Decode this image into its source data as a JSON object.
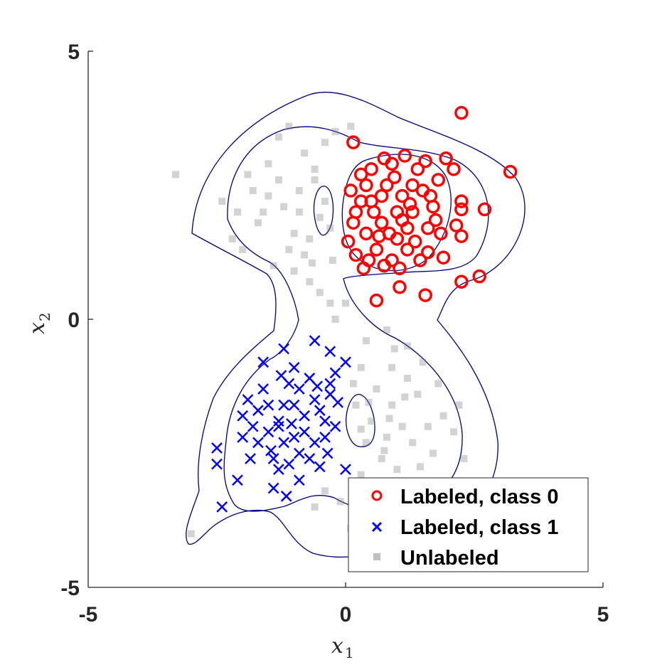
{
  "chart_data": {
    "type": "scatter",
    "title": "",
    "xlabel": "x",
    "xlabel_sub": "1",
    "ylabel": "x",
    "ylabel_sub": "2",
    "xlim": [
      -5,
      5
    ],
    "ylim": [
      -5,
      5
    ],
    "xticks": [
      "-5",
      "0",
      "5"
    ],
    "yticks": [
      "-5",
      "0",
      "5"
    ],
    "grid": false,
    "legend_position": "bottom-right",
    "colors": {
      "class0": "#ff0000",
      "class1": "#0000ff",
      "unlabeled": "#808080",
      "contour": "#00007f",
      "axis": "#262626"
    },
    "series": [
      {
        "name": "Labeled, class 0",
        "marker": "circle",
        "points": [
          [
            2.25,
            3.85
          ],
          [
            3.2,
            2.75
          ],
          [
            0.15,
            3.3
          ],
          [
            1.95,
            3.0
          ],
          [
            2.1,
            2.8
          ],
          [
            2.25,
            2.2
          ],
          [
            2.25,
            2.05
          ],
          [
            2.7,
            2.05
          ],
          [
            2.15,
            1.75
          ],
          [
            2.25,
            1.55
          ],
          [
            1.85,
            1.6
          ],
          [
            2.6,
            0.8
          ],
          [
            2.25,
            0.7
          ],
          [
            1.55,
            0.45
          ],
          [
            1.05,
            0.6
          ],
          [
            0.6,
            0.35
          ],
          [
            1.45,
            1.1
          ],
          [
            0.05,
            1.45
          ],
          [
            0.35,
            0.95
          ],
          [
            1.9,
            1.15
          ],
          [
            1.6,
            1.25
          ],
          [
            0.2,
            2.0
          ],
          [
            0.5,
            2.2
          ],
          [
            0.8,
            2.5
          ],
          [
            1.1,
            2.3
          ],
          [
            1.3,
            2.0
          ],
          [
            1.5,
            2.4
          ],
          [
            0.4,
            1.6
          ],
          [
            0.7,
            1.8
          ],
          [
            1.0,
            1.5
          ],
          [
            1.2,
            1.7
          ],
          [
            0.3,
            2.7
          ],
          [
            0.9,
            2.9
          ],
          [
            1.4,
            2.8
          ],
          [
            1.7,
            2.1
          ],
          [
            1.6,
            1.7
          ],
          [
            0.6,
            1.3
          ],
          [
            0.9,
            1.1
          ],
          [
            1.2,
            1.3
          ],
          [
            0.2,
            1.2
          ],
          [
            0.5,
            2.8
          ],
          [
            0.1,
            2.4
          ],
          [
            1.0,
            2.0
          ],
          [
            0.7,
            2.3
          ],
          [
            1.3,
            2.5
          ],
          [
            1.8,
            2.6
          ],
          [
            1.55,
            2.95
          ],
          [
            1.15,
            3.05
          ],
          [
            0.75,
            3.0
          ],
          [
            0.4,
            2.5
          ],
          [
            0.15,
            1.8
          ],
          [
            0.45,
            1.1
          ],
          [
            0.75,
            1.0
          ],
          [
            1.05,
            0.95
          ],
          [
            1.35,
            1.45
          ],
          [
            1.75,
            1.85
          ],
          [
            1.65,
            2.3
          ],
          [
            0.85,
            1.6
          ],
          [
            1.1,
            1.85
          ],
          [
            0.55,
            2.0
          ],
          [
            0.3,
            2.2
          ],
          [
            0.95,
            2.65
          ],
          [
            1.25,
            2.15
          ],
          [
            0.65,
            1.55
          ]
        ]
      },
      {
        "name": "Labeled, class 1",
        "marker": "x",
        "points": [
          [
            -2.4,
            -3.5
          ],
          [
            -2.5,
            -2.4
          ],
          [
            -2.5,
            -2.7
          ],
          [
            -2.1,
            -3.0
          ],
          [
            -1.4,
            -3.15
          ],
          [
            -1.15,
            -3.3
          ],
          [
            -0.9,
            -3.0
          ],
          [
            -0.5,
            -2.75
          ],
          [
            0.0,
            -2.8
          ],
          [
            -1.2,
            -0.55
          ],
          [
            -0.6,
            -0.4
          ],
          [
            -0.3,
            -0.6
          ],
          [
            -1.6,
            -0.8
          ],
          [
            -1.0,
            -0.9
          ],
          [
            -1.9,
            -1.5
          ],
          [
            -1.8,
            -2.0
          ],
          [
            -1.5,
            -1.6
          ],
          [
            -1.3,
            -1.9
          ],
          [
            -1.0,
            -1.6
          ],
          [
            -0.8,
            -2.1
          ],
          [
            -0.5,
            -1.7
          ],
          [
            -0.3,
            -1.4
          ],
          [
            -0.2,
            -2.0
          ],
          [
            -1.2,
            -2.3
          ],
          [
            -1.4,
            -2.6
          ],
          [
            -0.9,
            -2.5
          ],
          [
            -0.6,
            -2.3
          ],
          [
            -0.4,
            -2.2
          ],
          [
            -1.7,
            -2.3
          ],
          [
            -1.6,
            -1.3
          ],
          [
            -1.1,
            -1.2
          ],
          [
            -0.7,
            -1.1
          ],
          [
            -0.2,
            -1.0
          ],
          [
            0.0,
            -0.8
          ],
          [
            -1.3,
            -2.0
          ],
          [
            -1.0,
            -2.2
          ],
          [
            -0.8,
            -1.8
          ],
          [
            -0.6,
            -1.5
          ],
          [
            -1.5,
            -2.1
          ],
          [
            -2.0,
            -2.2
          ],
          [
            -1.2,
            -1.6
          ],
          [
            -0.9,
            -1.3
          ],
          [
            -0.4,
            -1.9
          ],
          [
            -0.3,
            -1.2
          ],
          [
            -1.1,
            -2.7
          ],
          [
            -1.3,
            -2.8
          ],
          [
            -1.7,
            -1.7
          ],
          [
            -2.0,
            -1.8
          ],
          [
            -0.7,
            -2.6
          ],
          [
            -1.45,
            -2.45
          ],
          [
            -0.35,
            -2.5
          ],
          [
            -1.85,
            -2.6
          ],
          [
            -1.05,
            -1.95
          ],
          [
            -0.55,
            -1.25
          ],
          [
            -0.15,
            -1.55
          ],
          [
            -1.25,
            -1.05
          ]
        ]
      },
      {
        "name": "Unlabeled",
        "marker": "square",
        "points": [
          [
            -3.3,
            2.7
          ],
          [
            -3.0,
            -4.0
          ],
          [
            -2.4,
            2.2
          ],
          [
            -2.2,
            1.5
          ],
          [
            -2.0,
            1.3
          ],
          [
            -1.8,
            2.4
          ],
          [
            -1.5,
            2.9
          ],
          [
            -1.3,
            3.4
          ],
          [
            -1.1,
            3.6
          ],
          [
            -0.8,
            3.1
          ],
          [
            -0.6,
            2.8
          ],
          [
            -0.4,
            3.3
          ],
          [
            -0.2,
            3.5
          ],
          [
            0.1,
            3.6
          ],
          [
            -1.4,
            1.0
          ],
          [
            -1.0,
            0.9
          ],
          [
            -0.7,
            0.7
          ],
          [
            -0.5,
            0.5
          ],
          [
            -0.3,
            0.3
          ],
          [
            -0.2,
            0.0
          ],
          [
            0.0,
            0.3
          ],
          [
            -1.7,
            1.8
          ],
          [
            -1.2,
            2.1
          ],
          [
            -0.9,
            2.4
          ],
          [
            -0.7,
            1.5
          ],
          [
            -0.5,
            1.9
          ],
          [
            -0.8,
            1.2
          ],
          [
            -1.0,
            1.6
          ],
          [
            -1.3,
            2.6
          ],
          [
            -1.6,
            2.0
          ],
          [
            -0.4,
            2.2
          ],
          [
            -0.6,
            2.6
          ],
          [
            -1.1,
            1.3
          ],
          [
            -0.9,
            2.0
          ],
          [
            -1.5,
            2.3
          ],
          [
            -1.9,
            2.7
          ],
          [
            -2.1,
            2.0
          ],
          [
            -0.3,
            1.7
          ],
          [
            -0.25,
            1.1
          ],
          [
            -0.65,
            1.05
          ],
          [
            0.8,
            -0.2
          ],
          [
            1.2,
            -0.5
          ],
          [
            1.5,
            -0.8
          ],
          [
            1.8,
            -1.2
          ],
          [
            2.2,
            -1.6
          ],
          [
            2.1,
            -2.1
          ],
          [
            2.3,
            -2.6
          ],
          [
            0.3,
            -0.9
          ],
          [
            0.6,
            -1.3
          ],
          [
            0.9,
            -1.6
          ],
          [
            1.1,
            -2.0
          ],
          [
            0.4,
            -2.3
          ],
          [
            0.7,
            -2.6
          ],
          [
            1.0,
            -2.8
          ],
          [
            1.3,
            -2.3
          ],
          [
            1.6,
            -2.0
          ],
          [
            1.7,
            -2.5
          ],
          [
            0.2,
            -1.6
          ],
          [
            0.5,
            -1.9
          ],
          [
            0.8,
            -2.2
          ],
          [
            0.3,
            -2.9
          ],
          [
            0.6,
            -3.1
          ],
          [
            -0.1,
            -3.4
          ],
          [
            -0.4,
            -3.2
          ],
          [
            -0.6,
            -3.5
          ],
          [
            0.1,
            -3.9
          ],
          [
            0.5,
            -3.6
          ],
          [
            1.4,
            -1.4
          ],
          [
            1.9,
            -1.8
          ],
          [
            1.2,
            -1.1
          ],
          [
            0.9,
            -0.9
          ],
          [
            0.4,
            -0.4
          ],
          [
            0.15,
            -1.2
          ],
          [
            0.45,
            -1.55
          ],
          [
            0.85,
            -1.85
          ],
          [
            1.15,
            -1.45
          ],
          [
            0.3,
            -2.05
          ],
          [
            0.75,
            -2.45
          ],
          [
            1.45,
            -2.75
          ],
          [
            0.95,
            -0.55
          ]
        ]
      }
    ]
  }
}
